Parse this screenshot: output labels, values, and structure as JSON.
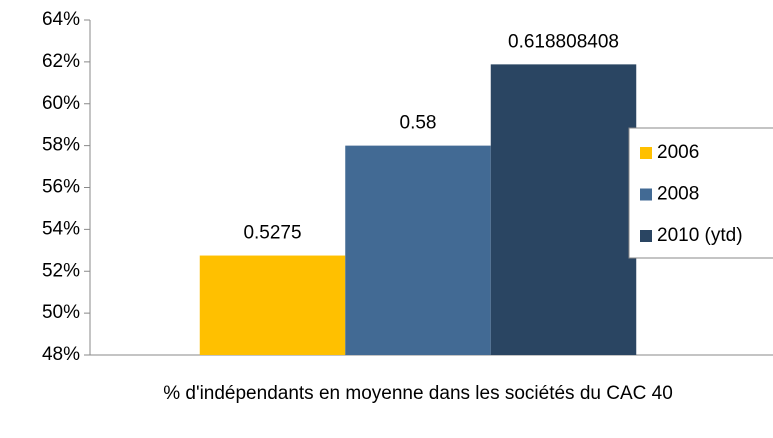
{
  "chart_data": {
    "type": "bar",
    "categories": [
      "% d'indépendants en moyenne dans les sociétés du CAC 40"
    ],
    "series": [
      {
        "name": "2006",
        "color": "#ffc000",
        "values": [
          52.75
        ],
        "value_labels": [
          "0.5275"
        ]
      },
      {
        "name": "2008",
        "color": "#426a94",
        "values": [
          58
        ],
        "value_labels": [
          "0.58"
        ]
      },
      {
        "name": "2010 (ytd)",
        "color": "#2a4562",
        "values": [
          61.8808408
        ],
        "value_labels": [
          "0.618808408"
        ]
      }
    ],
    "ylim": [
      48,
      64
    ],
    "yticks": [
      {
        "value": 48,
        "label": "48%"
      },
      {
        "value": 50,
        "label": "50%"
      },
      {
        "value": 52,
        "label": "52%"
      },
      {
        "value": 54,
        "label": "54%"
      },
      {
        "value": 56,
        "label": "56%"
      },
      {
        "value": 58,
        "label": "58%"
      },
      {
        "value": 60,
        "label": "60%"
      },
      {
        "value": 62,
        "label": "62%"
      },
      {
        "value": 64,
        "label": "64%"
      }
    ],
    "legend": "right"
  }
}
